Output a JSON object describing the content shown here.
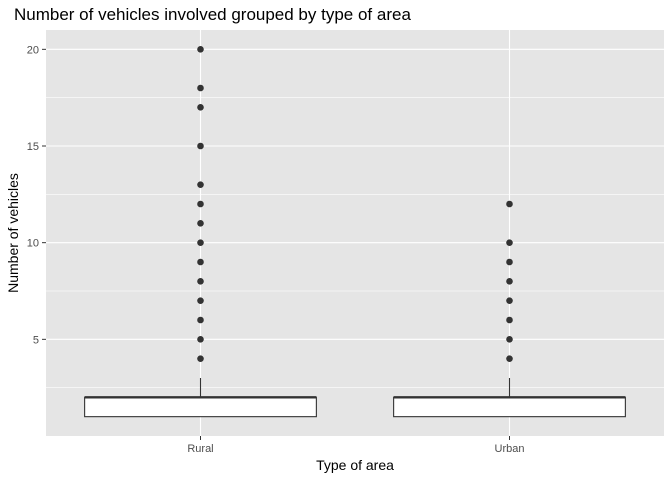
{
  "chart_data": {
    "type": "boxplot",
    "title": "Number of vehicles involved grouped by type of area",
    "xlabel": "Type of area",
    "ylabel": "Number of vehicles",
    "categories": [
      "Rural",
      "Urban"
    ],
    "ylim": [
      0,
      21
    ],
    "yticks": [
      5,
      10,
      15,
      20
    ],
    "grid": true,
    "background": "#e5e5e5",
    "grid_color": "#ffffff",
    "box_fill": "#ffffff",
    "box_stroke": "#333333",
    "outlier_color": "#333333",
    "series": [
      {
        "category": "Rural",
        "min": 1,
        "q1": 1,
        "median": 2,
        "q3": 2,
        "whisker_high": 3,
        "outliers": [
          4,
          5,
          6,
          7,
          8,
          9,
          10,
          11,
          12,
          13,
          15,
          17,
          18,
          20
        ]
      },
      {
        "category": "Urban",
        "min": 1,
        "q1": 1,
        "median": 2,
        "q3": 2,
        "whisker_high": 3,
        "outliers": [
          4,
          5,
          6,
          7,
          8,
          9,
          10,
          12
        ]
      }
    ]
  }
}
